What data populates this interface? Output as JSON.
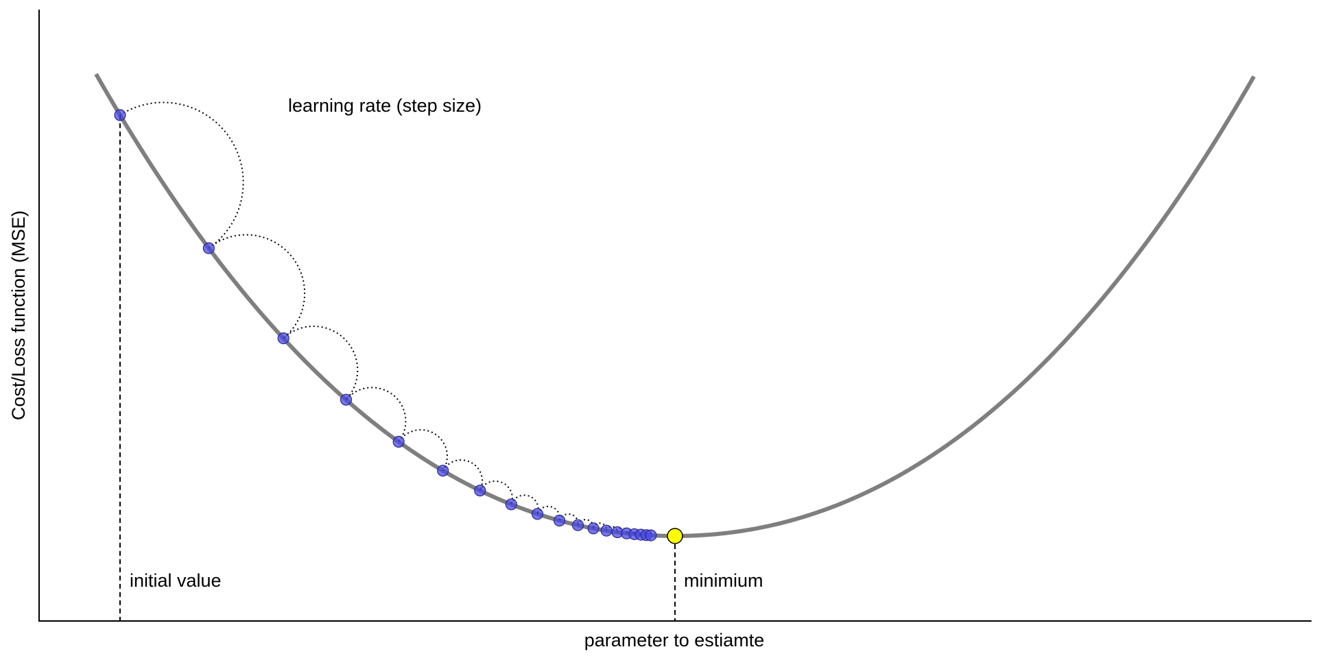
{
  "diagram": {
    "xlabel": "parameter to estiamte",
    "ylabel": "Cost/Loss function (MSE)",
    "annotations": {
      "step_size": "learning rate (step size)",
      "initial": "initial value",
      "minimum": "minimium"
    },
    "colors": {
      "curve": "#7f7f7f",
      "step_point": "#4a4ae6",
      "minimum_point": "#ffff00",
      "axis": "#000000"
    },
    "step_count": 19
  }
}
